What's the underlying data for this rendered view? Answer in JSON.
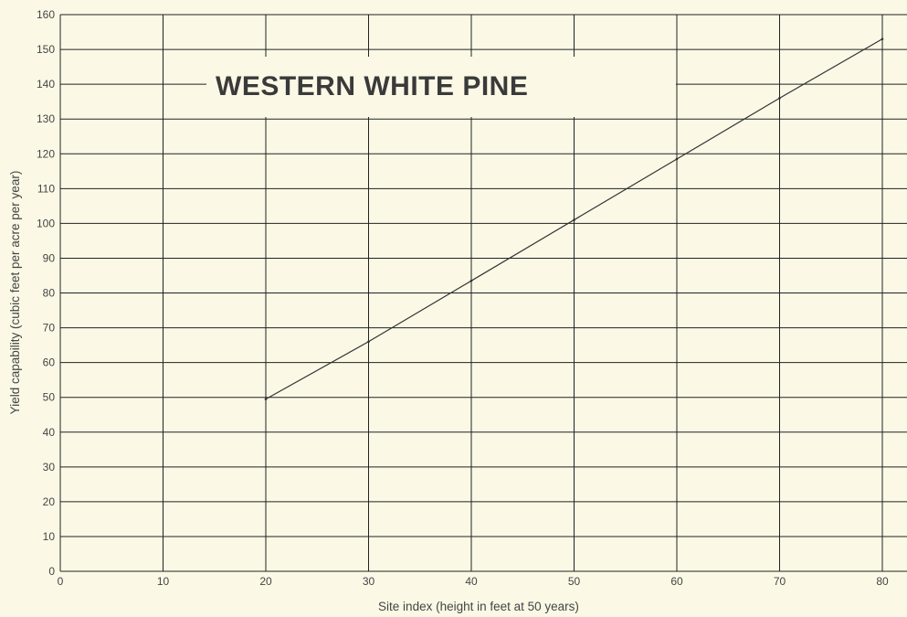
{
  "chart_data": {
    "type": "line",
    "title": "WESTERN WHITE PINE",
    "xlabel": "Site index (height in feet at 50 years)",
    "ylabel": "Yield capability (cubic feet per acre per year)",
    "xlim": [
      0,
      80
    ],
    "ylim": [
      0,
      160
    ],
    "xticks": [
      0,
      10,
      20,
      30,
      40,
      50,
      60,
      70,
      80
    ],
    "yticks": [
      0,
      10,
      20,
      30,
      40,
      50,
      60,
      70,
      80,
      90,
      100,
      110,
      120,
      130,
      140,
      150,
      160
    ],
    "grid": true,
    "series": [
      {
        "x": [
          20,
          30,
          40,
          50,
          60,
          70,
          80
        ],
        "values": [
          49.5,
          66,
          83.5,
          101,
          118.5,
          136,
          153
        ]
      }
    ],
    "colors": {
      "background": "#fbf9e6",
      "grid": "#222222",
      "line": "#333333",
      "text": "#444444"
    }
  }
}
